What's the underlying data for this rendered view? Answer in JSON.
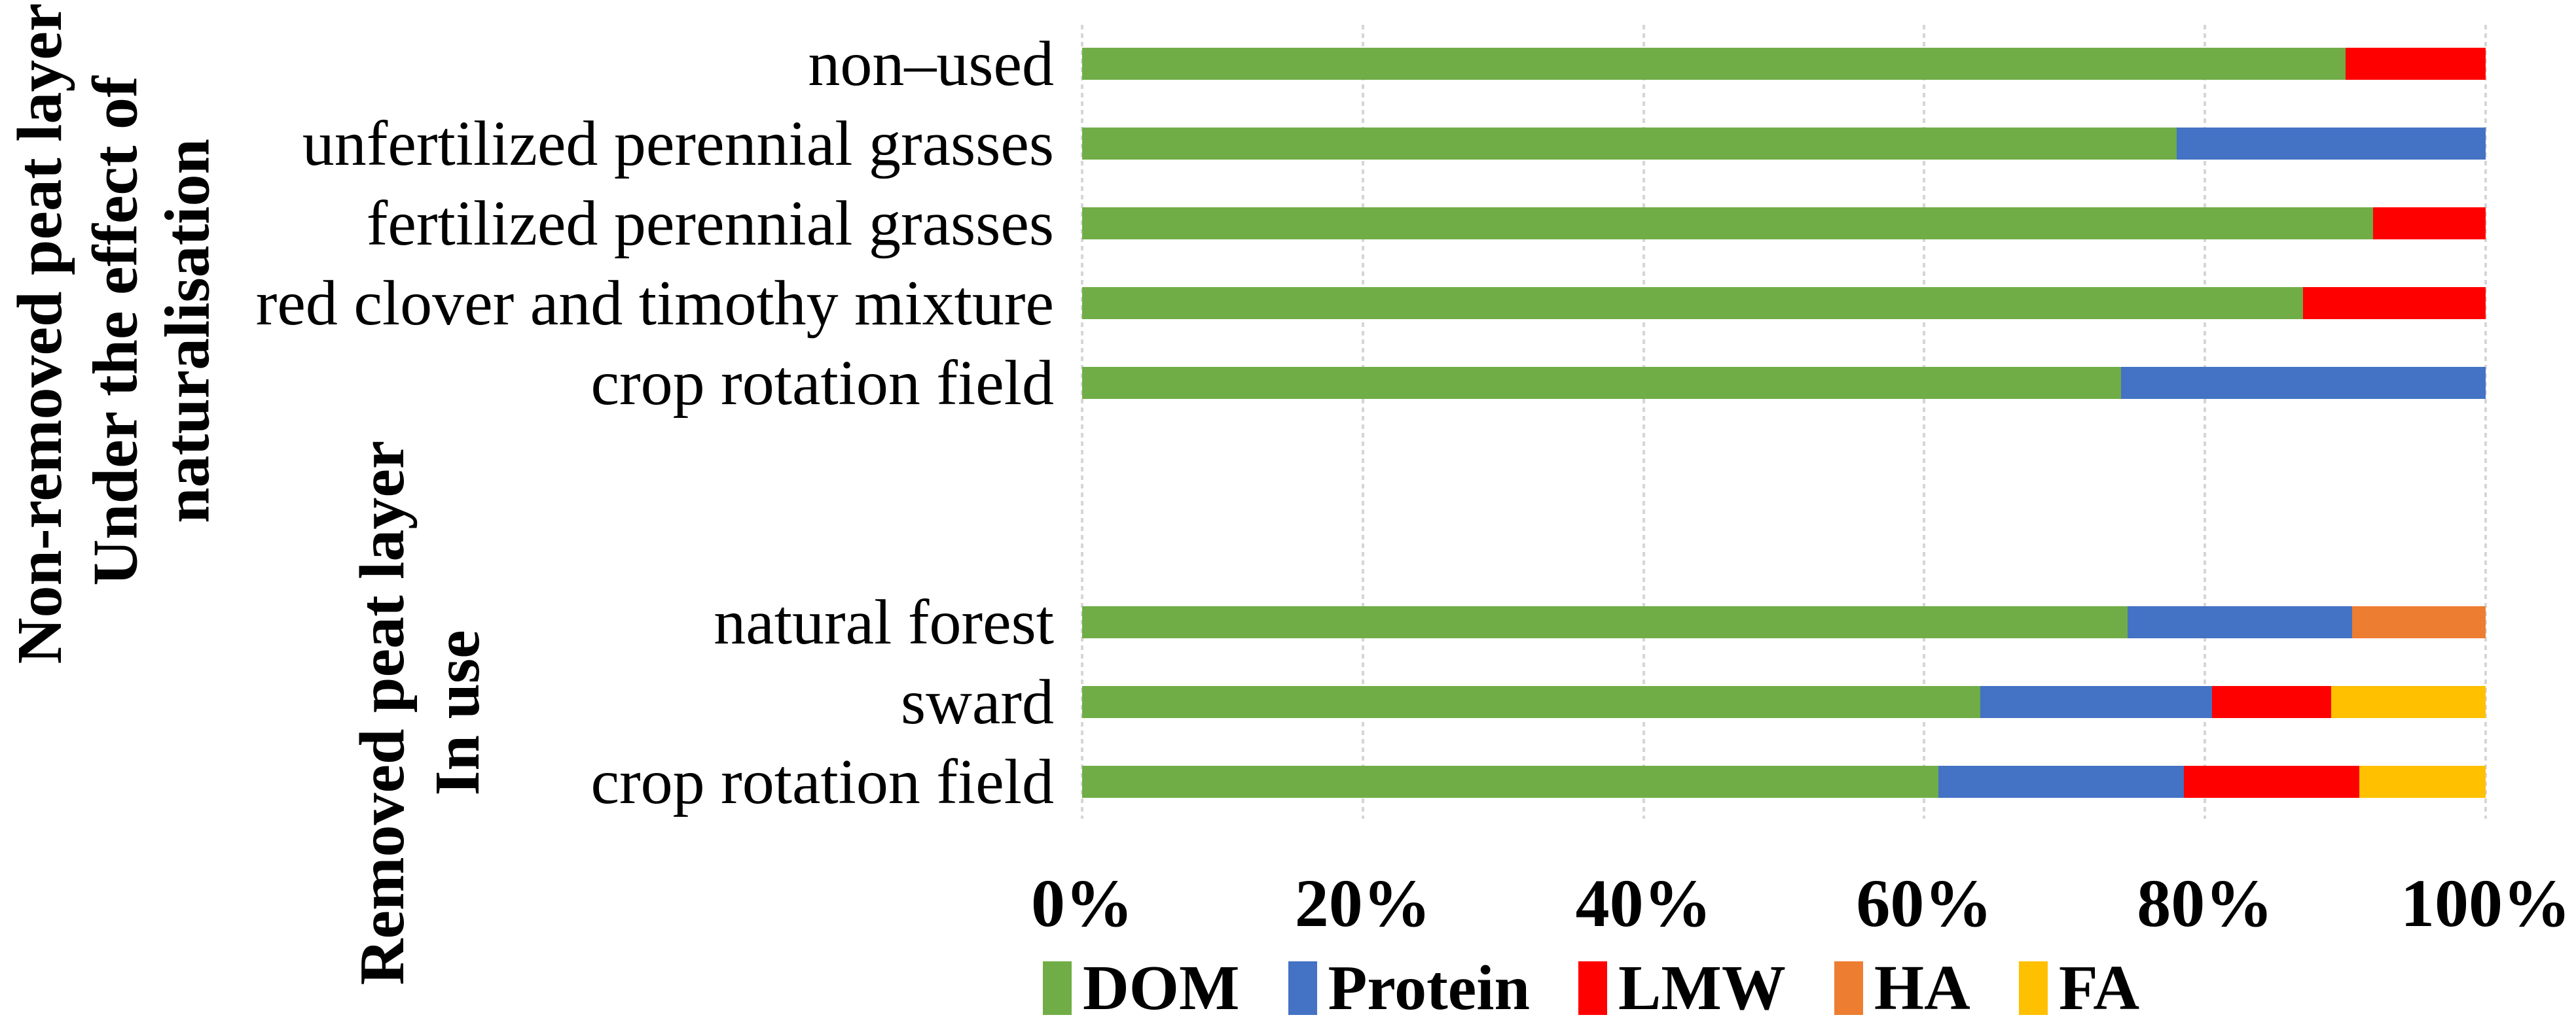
{
  "chart_data": {
    "type": "bar",
    "orientation": "horizontal",
    "stacked": true,
    "unit": "percent",
    "categories": [
      "non–used",
      "unfertilized perennial grasses",
      "fertilized perennial grasses",
      "red clover and timothy mixture",
      "crop rotation field",
      "natural forest",
      "sward",
      "crop rotation field"
    ],
    "series": [
      {
        "name": "DOM",
        "color": "#70AD47",
        "values": [
          90,
          78,
          92,
          87,
          74,
          74.5,
          64,
          61
        ]
      },
      {
        "name": "Protein",
        "color": "#4472C4",
        "values": [
          0,
          22,
          0,
          0,
          26,
          16,
          16.5,
          17.5
        ]
      },
      {
        "name": "LMW",
        "color": "#FF0000",
        "values": [
          10,
          0,
          8,
          13,
          0,
          0,
          8.5,
          12.5
        ]
      },
      {
        "name": "HA",
        "color": "#ED7D31",
        "values": [
          0,
          0,
          0,
          0,
          0,
          9.5,
          0,
          0
        ]
      },
      {
        "name": "FA",
        "color": "#FFC000",
        "values": [
          0,
          0,
          0,
          0,
          0,
          0,
          11,
          9
        ]
      }
    ],
    "group_labels": [
      {
        "peat_label": "Non-removed peat layer",
        "use_label_lines": [
          "Under the effect of",
          "naturalisation"
        ]
      },
      {
        "peat_label": "Removed peat layer",
        "use_label_lines": [
          "In use"
        ]
      }
    ],
    "x_axis": {
      "min": 0,
      "max": 100,
      "tick_labels": [
        "0%",
        "20%",
        "40%",
        "60%",
        "80%",
        "100%"
      ]
    },
    "legend": {
      "position": "bottom",
      "entries": [
        "DOM",
        "Protein",
        "LMW",
        "HA",
        "FA"
      ]
    },
    "grid": {
      "vertical_gridlines": true,
      "style": "dashed",
      "color": "#D6D6D6"
    },
    "layout_hints": {
      "gap_after_category_index": 4,
      "gap_slots": 2,
      "legend_marker": "vertical-rectangle"
    }
  }
}
